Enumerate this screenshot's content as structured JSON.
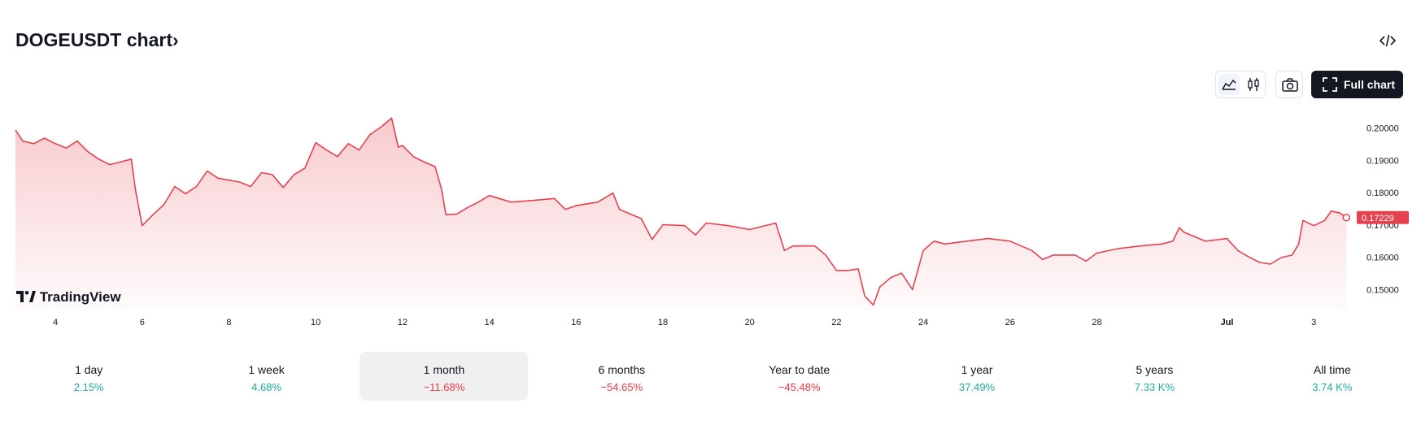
{
  "header": {
    "title": "DOGEUSDT chart",
    "chevron": "›",
    "full_chart_button": "Full chart",
    "logo_text": "TradingView"
  },
  "chart_data": {
    "type": "line",
    "series": [
      {
        "name": "DOGEUSDT",
        "color": "#e5424f",
        "x": [
          3.08,
          3.25,
          3.5,
          3.75,
          4.0,
          4.25,
          4.5,
          4.75,
          5.0,
          5.25,
          5.5,
          5.75,
          5.85,
          6.0,
          6.25,
          6.5,
          6.75,
          7.0,
          7.25,
          7.5,
          7.75,
          8.0,
          8.25,
          8.5,
          8.75,
          9.0,
          9.25,
          9.5,
          9.75,
          10.0,
          10.25,
          10.5,
          10.75,
          11.0,
          11.25,
          11.5,
          11.75,
          11.9,
          12.0,
          12.25,
          12.5,
          12.75,
          12.9,
          13.0,
          13.25,
          13.5,
          13.75,
          14.0,
          14.5,
          15.0,
          15.5,
          15.75,
          16.0,
          16.5,
          16.85,
          17.0,
          17.5,
          17.75,
          18.0,
          18.5,
          18.75,
          19.0,
          19.5,
          20.0,
          20.6,
          20.8,
          21.0,
          21.5,
          21.75,
          22.0,
          22.25,
          22.5,
          22.65,
          22.85,
          23.0,
          23.25,
          23.5,
          23.75,
          24.0,
          24.25,
          24.5,
          25.0,
          25.5,
          26.0,
          26.5,
          26.75,
          27.0,
          27.5,
          27.75,
          28.0,
          28.5,
          29.0,
          29.5,
          29.75,
          29.9,
          30.0,
          30.5,
          31.0,
          31.25,
          31.5,
          31.75,
          32.0,
          32.25,
          32.5,
          32.65,
          32.75,
          33.0,
          33.25,
          33.4,
          33.6,
          33.75
        ],
        "values": [
          0.1994,
          0.196,
          0.1952,
          0.1969,
          0.1952,
          0.1938,
          0.196,
          0.1927,
          0.1904,
          0.1887,
          0.1895,
          0.1904,
          0.1805,
          0.1698,
          0.1732,
          0.1763,
          0.1819,
          0.1797,
          0.1819,
          0.1867,
          0.1845,
          0.1839,
          0.1833,
          0.1819,
          0.1862,
          0.1856,
          0.1816,
          0.1856,
          0.1876,
          0.1955,
          0.1932,
          0.1912,
          0.1952,
          0.1932,
          0.198,
          0.2003,
          0.2031,
          0.1941,
          0.1946,
          0.1912,
          0.1895,
          0.1881,
          0.181,
          0.1732,
          0.1734,
          0.1754,
          0.1771,
          0.1791,
          0.1771,
          0.1776,
          0.1782,
          0.1748,
          0.176,
          0.1771,
          0.1799,
          0.1748,
          0.172,
          0.1655,
          0.1701,
          0.1698,
          0.1669,
          0.1706,
          0.1698,
          0.1686,
          0.1706,
          0.1621,
          0.1635,
          0.1635,
          0.1607,
          0.1559,
          0.1559,
          0.1564,
          0.148,
          0.1452,
          0.1508,
          0.1537,
          0.1551,
          0.15,
          0.1621,
          0.165,
          0.1641,
          0.165,
          0.1658,
          0.165,
          0.1621,
          0.1593,
          0.1607,
          0.1607,
          0.1588,
          0.1613,
          0.1627,
          0.1635,
          0.1641,
          0.165,
          0.1692,
          0.1678,
          0.165,
          0.1658,
          0.1621,
          0.1601,
          0.1584,
          0.1579,
          0.1599,
          0.1607,
          0.1641,
          0.1714,
          0.1698,
          0.1714,
          0.1743,
          0.1737,
          0.17229
        ]
      }
    ],
    "current_price": 0.17229,
    "xlim": [
      3.08,
      33.97
    ],
    "xticks": [
      4,
      6,
      8,
      10,
      12,
      14,
      16,
      18,
      20,
      22,
      24,
      26,
      28,
      {
        "value": 31,
        "label": "Jul"
      },
      {
        "value": 33,
        "label": "3"
      }
    ],
    "ylim": [
      0.1438,
      0.2037
    ],
    "yticks": [
      {
        "value": 0.15,
        "label": "0.15000"
      },
      {
        "value": 0.16,
        "label": "0.16000"
      },
      {
        "value": 0.17,
        "label": "0.17000"
      },
      {
        "value": 0.18,
        "label": "0.18000"
      },
      {
        "value": 0.19,
        "label": "0.19000"
      },
      {
        "value": 0.2,
        "label": "0.20000"
      }
    ],
    "grid": false
  },
  "periods": [
    {
      "label": "1 day",
      "change": "2.15%",
      "color": "#22ab94"
    },
    {
      "label": "1 week",
      "change": "4.68%",
      "color": "#22ab94"
    },
    {
      "label": "1 month",
      "change": "−11.68%",
      "color": "#f23645",
      "selected": true
    },
    {
      "label": "6 months",
      "change": "−54.65%",
      "color": "#f23645"
    },
    {
      "label": "Year to date",
      "change": "−45.48%",
      "color": "#f23645"
    },
    {
      "label": "1 year",
      "change": "37.49%",
      "color": "#22ab94"
    },
    {
      "label": "5 years",
      "change": "7.33 K%",
      "color": "#22ab94"
    },
    {
      "label": "All time",
      "change": "3.74 K%",
      "color": "#22ab94"
    }
  ]
}
